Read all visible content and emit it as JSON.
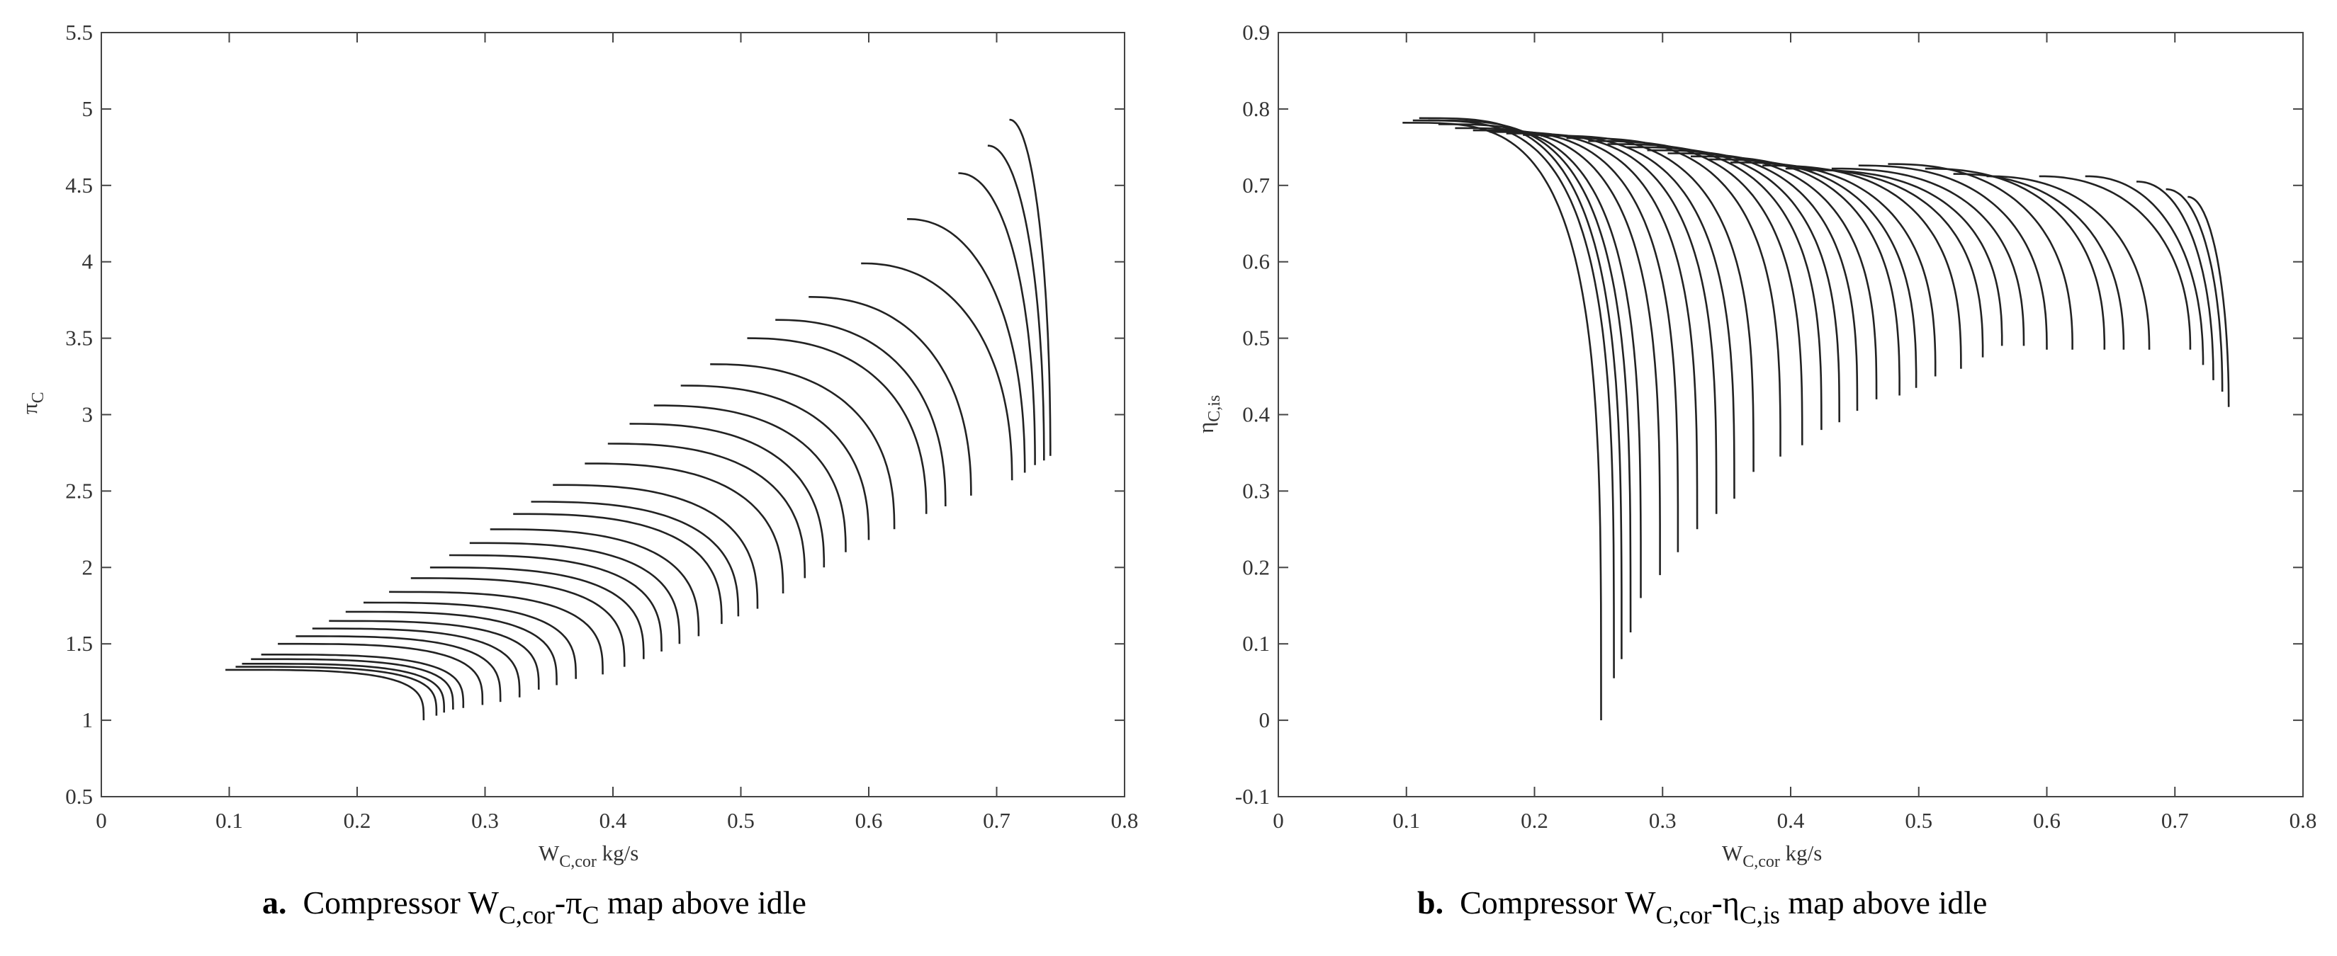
{
  "chart_data": [
    {
      "type": "line",
      "panel_letter": "a.",
      "caption": {
        "prefix": "Compressor W",
        "sub1": "C,cor",
        "mid": "-π",
        "sub2": "C",
        "suffix": " map above idle"
      },
      "xlabel": {
        "main": "W",
        "sub": "C,cor",
        "unit": " kg/s"
      },
      "ylabel": {
        "main": "π",
        "sub": "C"
      },
      "xlim": [
        0,
        0.8
      ],
      "ylim": [
        0.5,
        5.5
      ],
      "xticks": [
        "0",
        "0.1",
        "0.2",
        "0.3",
        "0.4",
        "0.5",
        "0.6",
        "0.7",
        "0.8"
      ],
      "yticks": [
        "0.5",
        "1",
        "1.5",
        "2",
        "2.5",
        "3",
        "3.5",
        "4",
        "4.5",
        "5",
        "5.5"
      ],
      "grid": false,
      "line_color": "#222222",
      "speed_lines": [
        {
          "surge": [
            0.097,
            1.33
          ],
          "choke": [
            0.252,
            1.0
          ]
        },
        {
          "surge": [
            0.105,
            1.35
          ],
          "choke": [
            0.262,
            1.03
          ]
        },
        {
          "surge": [
            0.11,
            1.37
          ],
          "choke": [
            0.268,
            1.05
          ]
        },
        {
          "surge": [
            0.117,
            1.4
          ],
          "choke": [
            0.275,
            1.07
          ]
        },
        {
          "surge": [
            0.125,
            1.43
          ],
          "choke": [
            0.283,
            1.08
          ]
        },
        {
          "surge": [
            0.138,
            1.5
          ],
          "choke": [
            0.298,
            1.1
          ]
        },
        {
          "surge": [
            0.152,
            1.55
          ],
          "choke": [
            0.312,
            1.12
          ]
        },
        {
          "surge": [
            0.165,
            1.6
          ],
          "choke": [
            0.327,
            1.15
          ]
        },
        {
          "surge": [
            0.178,
            1.65
          ],
          "choke": [
            0.342,
            1.2
          ]
        },
        {
          "surge": [
            0.191,
            1.71
          ],
          "choke": [
            0.356,
            1.23
          ]
        },
        {
          "surge": [
            0.205,
            1.77
          ],
          "choke": [
            0.371,
            1.27
          ]
        },
        {
          "surge": [
            0.225,
            1.84
          ],
          "choke": [
            0.392,
            1.3
          ]
        },
        {
          "surge": [
            0.242,
            1.93
          ],
          "choke": [
            0.409,
            1.35
          ]
        },
        {
          "surge": [
            0.257,
            2.0
          ],
          "choke": [
            0.424,
            1.4
          ]
        },
        {
          "surge": [
            0.272,
            2.08
          ],
          "choke": [
            0.438,
            1.45
          ]
        },
        {
          "surge": [
            0.288,
            2.16
          ],
          "choke": [
            0.452,
            1.5
          ]
        },
        {
          "surge": [
            0.304,
            2.25
          ],
          "choke": [
            0.467,
            1.55
          ]
        },
        {
          "surge": [
            0.322,
            2.35
          ],
          "choke": [
            0.485,
            1.63
          ]
        },
        {
          "surge": [
            0.336,
            2.43
          ],
          "choke": [
            0.498,
            1.68
          ]
        },
        {
          "surge": [
            0.353,
            2.54
          ],
          "choke": [
            0.513,
            1.73
          ]
        },
        {
          "surge": [
            0.378,
            2.68
          ],
          "choke": [
            0.533,
            1.83
          ]
        },
        {
          "surge": [
            0.396,
            2.81
          ],
          "choke": [
            0.55,
            1.93
          ]
        },
        {
          "surge": [
            0.413,
            2.94
          ],
          "choke": [
            0.565,
            2.0
          ]
        },
        {
          "surge": [
            0.432,
            3.06
          ],
          "choke": [
            0.582,
            2.1
          ]
        },
        {
          "surge": [
            0.453,
            3.19
          ],
          "choke": [
            0.6,
            2.18
          ]
        },
        {
          "surge": [
            0.476,
            3.33
          ],
          "choke": [
            0.62,
            2.25
          ]
        },
        {
          "surge": [
            0.505,
            3.5
          ],
          "choke": [
            0.645,
            2.35
          ]
        },
        {
          "surge": [
            0.527,
            3.62
          ],
          "choke": [
            0.66,
            2.4
          ]
        },
        {
          "surge": [
            0.553,
            3.77
          ],
          "choke": [
            0.68,
            2.47
          ]
        },
        {
          "surge": [
            0.594,
            3.99
          ],
          "choke": [
            0.712,
            2.57
          ]
        },
        {
          "surge": [
            0.63,
            4.28
          ],
          "choke": [
            0.722,
            2.62
          ]
        },
        {
          "surge": [
            0.67,
            4.58
          ],
          "choke": [
            0.73,
            2.67
          ]
        },
        {
          "surge": [
            0.693,
            4.76
          ],
          "choke": [
            0.737,
            2.7
          ]
        },
        {
          "surge": [
            0.71,
            4.93
          ],
          "choke": [
            0.742,
            2.73
          ]
        }
      ]
    },
    {
      "type": "line",
      "panel_letter": "b.",
      "caption": {
        "prefix": "Compressor W",
        "sub1": "C,cor",
        "mid": "-η",
        "sub2": "C,is",
        "suffix": " map above idle"
      },
      "xlabel": {
        "main": "W",
        "sub": "C,cor",
        "unit": " kg/s"
      },
      "ylabel": {
        "main": "η",
        "sub": "C,is"
      },
      "xlim": [
        0,
        0.8
      ],
      "ylim": [
        -0.1,
        0.9
      ],
      "xticks": [
        "0",
        "0.1",
        "0.2",
        "0.3",
        "0.4",
        "0.5",
        "0.6",
        "0.7",
        "0.8"
      ],
      "yticks": [
        "-0.1",
        "0",
        "0.1",
        "0.2",
        "0.3",
        "0.4",
        "0.5",
        "0.6",
        "0.7",
        "0.8",
        "0.9"
      ],
      "grid": false,
      "line_color": "#222222",
      "speed_lines": [
        {
          "surge": [
            0.097,
            0.782
          ],
          "choke": [
            0.252,
            0.0
          ]
        },
        {
          "surge": [
            0.105,
            0.785
          ],
          "choke": [
            0.262,
            0.055
          ]
        },
        {
          "surge": [
            0.11,
            0.788
          ],
          "choke": [
            0.268,
            0.08
          ]
        },
        {
          "surge": [
            0.117,
            0.785
          ],
          "choke": [
            0.275,
            0.115
          ]
        },
        {
          "surge": [
            0.125,
            0.78
          ],
          "choke": [
            0.283,
            0.16
          ]
        },
        {
          "surge": [
            0.138,
            0.775
          ],
          "choke": [
            0.298,
            0.19
          ]
        },
        {
          "surge": [
            0.152,
            0.772
          ],
          "choke": [
            0.312,
            0.22
          ]
        },
        {
          "surge": [
            0.165,
            0.77
          ],
          "choke": [
            0.327,
            0.25
          ]
        },
        {
          "surge": [
            0.178,
            0.768
          ],
          "choke": [
            0.342,
            0.27
          ]
        },
        {
          "surge": [
            0.191,
            0.766
          ],
          "choke": [
            0.356,
            0.29
          ]
        },
        {
          "surge": [
            0.205,
            0.765
          ],
          "choke": [
            0.371,
            0.325
          ]
        },
        {
          "surge": [
            0.225,
            0.762
          ],
          "choke": [
            0.392,
            0.345
          ]
        },
        {
          "surge": [
            0.242,
            0.758
          ],
          "choke": [
            0.409,
            0.36
          ]
        },
        {
          "surge": [
            0.257,
            0.754
          ],
          "choke": [
            0.424,
            0.38
          ]
        },
        {
          "surge": [
            0.272,
            0.75
          ],
          "choke": [
            0.438,
            0.39
          ]
        },
        {
          "surge": [
            0.288,
            0.746
          ],
          "choke": [
            0.452,
            0.405
          ]
        },
        {
          "surge": [
            0.304,
            0.742
          ],
          "choke": [
            0.467,
            0.42
          ]
        },
        {
          "surge": [
            0.322,
            0.738
          ],
          "choke": [
            0.485,
            0.425
          ]
        },
        {
          "surge": [
            0.336,
            0.734
          ],
          "choke": [
            0.498,
            0.435
          ]
        },
        {
          "surge": [
            0.353,
            0.73
          ],
          "choke": [
            0.513,
            0.45
          ]
        },
        {
          "surge": [
            0.378,
            0.726
          ],
          "choke": [
            0.533,
            0.46
          ]
        },
        {
          "surge": [
            0.396,
            0.722
          ],
          "choke": [
            0.55,
            0.475
          ]
        },
        {
          "surge": [
            0.413,
            0.72
          ],
          "choke": [
            0.565,
            0.49
          ]
        },
        {
          "surge": [
            0.432,
            0.722
          ],
          "choke": [
            0.582,
            0.49
          ]
        },
        {
          "surge": [
            0.453,
            0.726
          ],
          "choke": [
            0.6,
            0.485
          ]
        },
        {
          "surge": [
            0.476,
            0.728
          ],
          "choke": [
            0.62,
            0.485
          ]
        },
        {
          "surge": [
            0.505,
            0.722
          ],
          "choke": [
            0.645,
            0.485
          ]
        },
        {
          "surge": [
            0.527,
            0.715
          ],
          "choke": [
            0.66,
            0.485
          ]
        },
        {
          "surge": [
            0.553,
            0.712
          ],
          "choke": [
            0.68,
            0.485
          ]
        },
        {
          "surge": [
            0.594,
            0.712
          ],
          "choke": [
            0.712,
            0.485
          ]
        },
        {
          "surge": [
            0.63,
            0.712
          ],
          "choke": [
            0.722,
            0.465
          ]
        },
        {
          "surge": [
            0.67,
            0.705
          ],
          "choke": [
            0.73,
            0.445
          ]
        },
        {
          "surge": [
            0.693,
            0.695
          ],
          "choke": [
            0.737,
            0.43
          ]
        },
        {
          "surge": [
            0.71,
            0.685
          ],
          "choke": [
            0.742,
            0.41
          ]
        }
      ]
    }
  ]
}
